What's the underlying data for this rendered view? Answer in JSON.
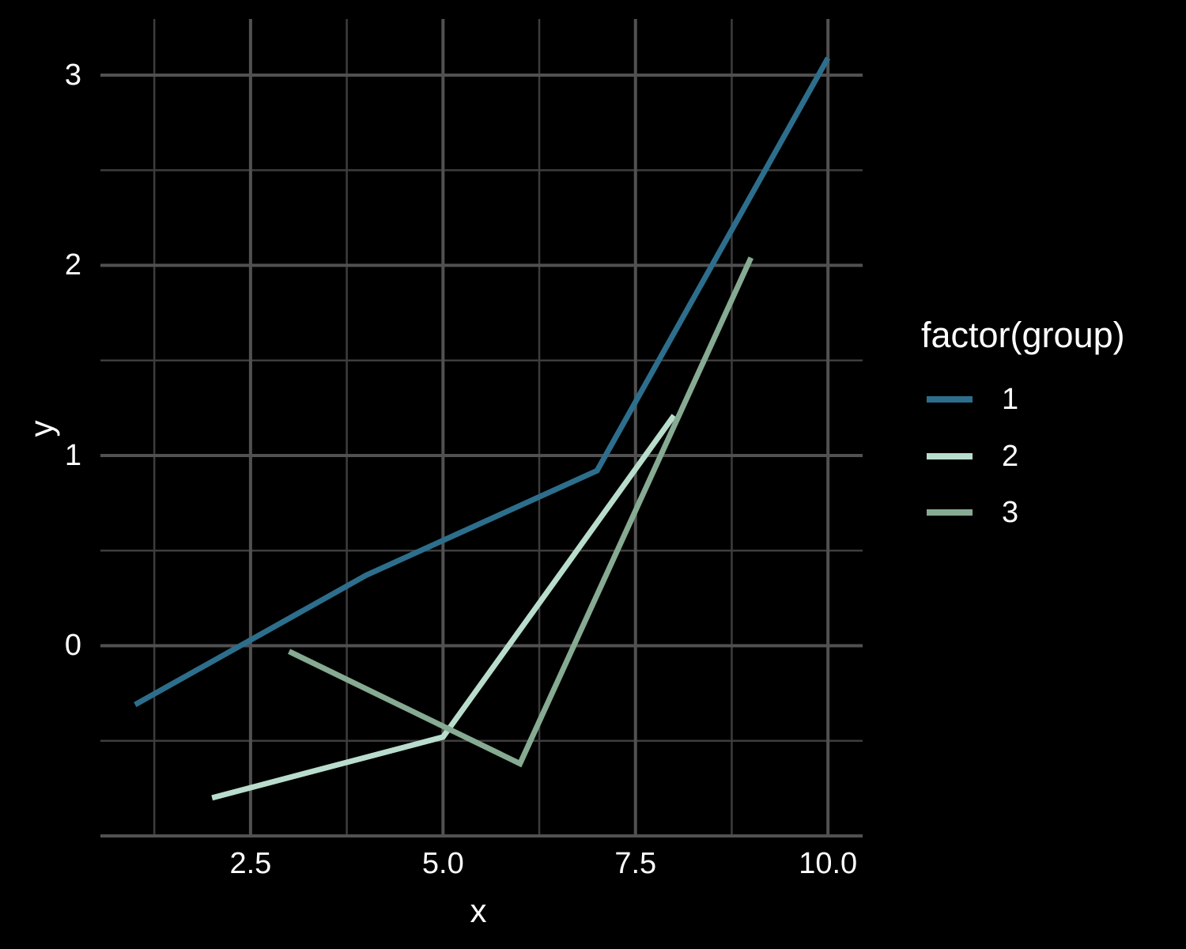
{
  "chart_data": {
    "type": "line",
    "title": "",
    "xlabel": "x",
    "ylabel": "y",
    "background": "#000000",
    "text_color": "#ffffff",
    "grid": {
      "major_color": "#515151",
      "minor_color": "#3d3d3d",
      "major_width": 4,
      "minor_width": 2.5,
      "grid_on": true
    },
    "line_width": 7,
    "x_axis": {
      "range": [
        0.55,
        10.45
      ],
      "major_gridlines": [
        2.5,
        5,
        7.5,
        10
      ],
      "minor_gridlines": [
        1.25,
        3.75,
        6.25,
        8.75
      ],
      "ticks": [
        {
          "value": 2.5,
          "label": "2.5"
        },
        {
          "value": 5,
          "label": "5.0"
        },
        {
          "value": 7.5,
          "label": "7.5"
        },
        {
          "value": 10,
          "label": "10.0"
        }
      ]
    },
    "y_axis": {
      "range": [
        -1.0,
        3.295
      ],
      "major_gridlines": [
        -1,
        0,
        1,
        2,
        3
      ],
      "minor_gridlines": [
        -0.5,
        0.5,
        1.5,
        2.5
      ],
      "ticks": [
        {
          "value": 0,
          "label": "0"
        },
        {
          "value": 1,
          "label": "1"
        },
        {
          "value": 2,
          "label": "2"
        },
        {
          "value": 3,
          "label": "3"
        }
      ]
    },
    "legend": {
      "title": "factor(group)",
      "position": "right",
      "items": [
        {
          "label": "1",
          "color": "#2d6e8c"
        },
        {
          "label": "2",
          "color": "#b9ddcd"
        },
        {
          "label": "3",
          "color": "#86aa92"
        }
      ]
    },
    "series": [
      {
        "name": "1",
        "color": "#2d6e8c",
        "points": [
          [
            1,
            -0.31
          ],
          [
            4,
            0.37
          ],
          [
            7,
            0.92
          ],
          [
            10,
            3.09
          ]
        ]
      },
      {
        "name": "2",
        "color": "#b9ddcd",
        "points": [
          [
            2,
            -0.8
          ],
          [
            5,
            -0.48
          ],
          [
            8,
            1.21
          ]
        ]
      },
      {
        "name": "3",
        "color": "#86aa92",
        "points": [
          [
            3,
            -0.03
          ],
          [
            6,
            -0.62
          ],
          [
            9,
            2.04
          ]
        ]
      }
    ]
  }
}
